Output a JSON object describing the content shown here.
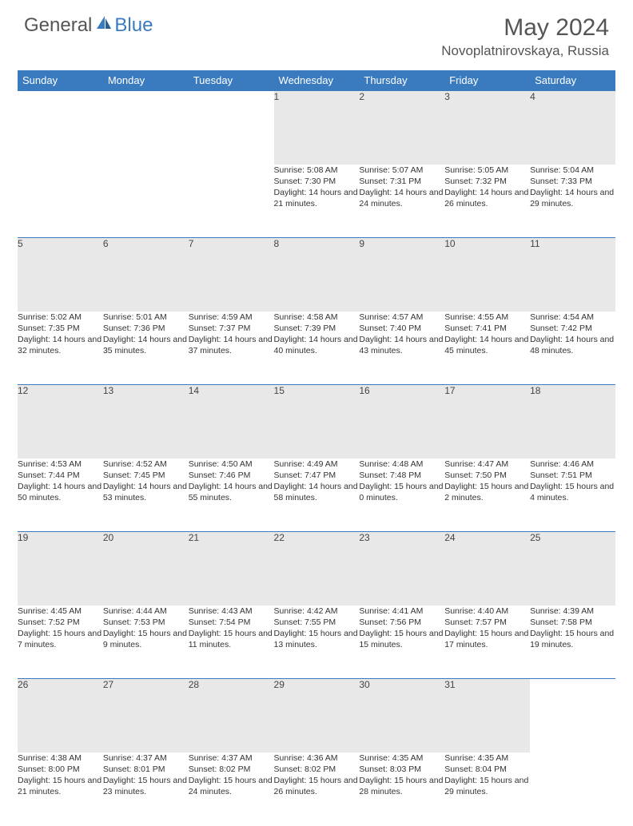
{
  "logo": {
    "general": "General",
    "blue": "Blue"
  },
  "title": "May 2024",
  "location": "Novoplatnirovskaya, Russia",
  "colors": {
    "header_bg": "#3a7bbf",
    "daynum_bg": "#e8e8e8",
    "border": "#3a7bbf",
    "text": "#333333"
  },
  "weekdays": [
    "Sunday",
    "Monday",
    "Tuesday",
    "Wednesday",
    "Thursday",
    "Friday",
    "Saturday"
  ],
  "weeks": [
    [
      null,
      null,
      null,
      {
        "n": "1",
        "sr": "5:08 AM",
        "ss": "7:30 PM",
        "dl": "14 hours and 21 minutes."
      },
      {
        "n": "2",
        "sr": "5:07 AM",
        "ss": "7:31 PM",
        "dl": "14 hours and 24 minutes."
      },
      {
        "n": "3",
        "sr": "5:05 AM",
        "ss": "7:32 PM",
        "dl": "14 hours and 26 minutes."
      },
      {
        "n": "4",
        "sr": "5:04 AM",
        "ss": "7:33 PM",
        "dl": "14 hours and 29 minutes."
      }
    ],
    [
      {
        "n": "5",
        "sr": "5:02 AM",
        "ss": "7:35 PM",
        "dl": "14 hours and 32 minutes."
      },
      {
        "n": "6",
        "sr": "5:01 AM",
        "ss": "7:36 PM",
        "dl": "14 hours and 35 minutes."
      },
      {
        "n": "7",
        "sr": "4:59 AM",
        "ss": "7:37 PM",
        "dl": "14 hours and 37 minutes."
      },
      {
        "n": "8",
        "sr": "4:58 AM",
        "ss": "7:39 PM",
        "dl": "14 hours and 40 minutes."
      },
      {
        "n": "9",
        "sr": "4:57 AM",
        "ss": "7:40 PM",
        "dl": "14 hours and 43 minutes."
      },
      {
        "n": "10",
        "sr": "4:55 AM",
        "ss": "7:41 PM",
        "dl": "14 hours and 45 minutes."
      },
      {
        "n": "11",
        "sr": "4:54 AM",
        "ss": "7:42 PM",
        "dl": "14 hours and 48 minutes."
      }
    ],
    [
      {
        "n": "12",
        "sr": "4:53 AM",
        "ss": "7:44 PM",
        "dl": "14 hours and 50 minutes."
      },
      {
        "n": "13",
        "sr": "4:52 AM",
        "ss": "7:45 PM",
        "dl": "14 hours and 53 minutes."
      },
      {
        "n": "14",
        "sr": "4:50 AM",
        "ss": "7:46 PM",
        "dl": "14 hours and 55 minutes."
      },
      {
        "n": "15",
        "sr": "4:49 AM",
        "ss": "7:47 PM",
        "dl": "14 hours and 58 minutes."
      },
      {
        "n": "16",
        "sr": "4:48 AM",
        "ss": "7:48 PM",
        "dl": "15 hours and 0 minutes."
      },
      {
        "n": "17",
        "sr": "4:47 AM",
        "ss": "7:50 PM",
        "dl": "15 hours and 2 minutes."
      },
      {
        "n": "18",
        "sr": "4:46 AM",
        "ss": "7:51 PM",
        "dl": "15 hours and 4 minutes."
      }
    ],
    [
      {
        "n": "19",
        "sr": "4:45 AM",
        "ss": "7:52 PM",
        "dl": "15 hours and 7 minutes."
      },
      {
        "n": "20",
        "sr": "4:44 AM",
        "ss": "7:53 PM",
        "dl": "15 hours and 9 minutes."
      },
      {
        "n": "21",
        "sr": "4:43 AM",
        "ss": "7:54 PM",
        "dl": "15 hours and 11 minutes."
      },
      {
        "n": "22",
        "sr": "4:42 AM",
        "ss": "7:55 PM",
        "dl": "15 hours and 13 minutes."
      },
      {
        "n": "23",
        "sr": "4:41 AM",
        "ss": "7:56 PM",
        "dl": "15 hours and 15 minutes."
      },
      {
        "n": "24",
        "sr": "4:40 AM",
        "ss": "7:57 PM",
        "dl": "15 hours and 17 minutes."
      },
      {
        "n": "25",
        "sr": "4:39 AM",
        "ss": "7:58 PM",
        "dl": "15 hours and 19 minutes."
      }
    ],
    [
      {
        "n": "26",
        "sr": "4:38 AM",
        "ss": "8:00 PM",
        "dl": "15 hours and 21 minutes."
      },
      {
        "n": "27",
        "sr": "4:37 AM",
        "ss": "8:01 PM",
        "dl": "15 hours and 23 minutes."
      },
      {
        "n": "28",
        "sr": "4:37 AM",
        "ss": "8:02 PM",
        "dl": "15 hours and 24 minutes."
      },
      {
        "n": "29",
        "sr": "4:36 AM",
        "ss": "8:02 PM",
        "dl": "15 hours and 26 minutes."
      },
      {
        "n": "30",
        "sr": "4:35 AM",
        "ss": "8:03 PM",
        "dl": "15 hours and 28 minutes."
      },
      {
        "n": "31",
        "sr": "4:35 AM",
        "ss": "8:04 PM",
        "dl": "15 hours and 29 minutes."
      },
      null
    ]
  ],
  "labels": {
    "sunrise": "Sunrise:",
    "sunset": "Sunset:",
    "daylight": "Daylight:"
  }
}
